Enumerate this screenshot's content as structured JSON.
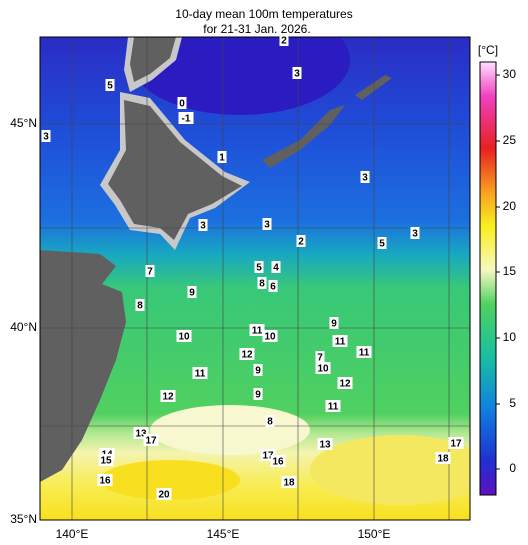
{
  "title": [
    "10-day mean 100m temperatures",
    "for 21-31 Jan. 2026."
  ],
  "lat_labels": [
    "45°N",
    "40°N",
    "35°N"
  ],
  "lon_labels": [
    "140°E",
    "145°E",
    "150°E"
  ],
  "colorbar": {
    "unit": "[°C]",
    "ticks": [
      "30",
      "25",
      "20",
      "15",
      "10",
      "5",
      "0"
    ]
  },
  "contour_labels": [
    "2",
    "3",
    "5",
    "0",
    "-1",
    "3",
    "1",
    "3",
    "3",
    "3",
    "2",
    "5",
    "3",
    "7",
    "5",
    "4",
    "8",
    "6",
    "9",
    "8",
    "9",
    "11",
    "10",
    "10",
    "11",
    "11",
    "12",
    "7",
    "9",
    "10",
    "11",
    "12",
    "12",
    "9",
    "11",
    "8",
    "13",
    "17",
    "13",
    "17",
    "14",
    "17",
    "16",
    "15",
    "18",
    "16",
    "18",
    "20"
  ]
}
